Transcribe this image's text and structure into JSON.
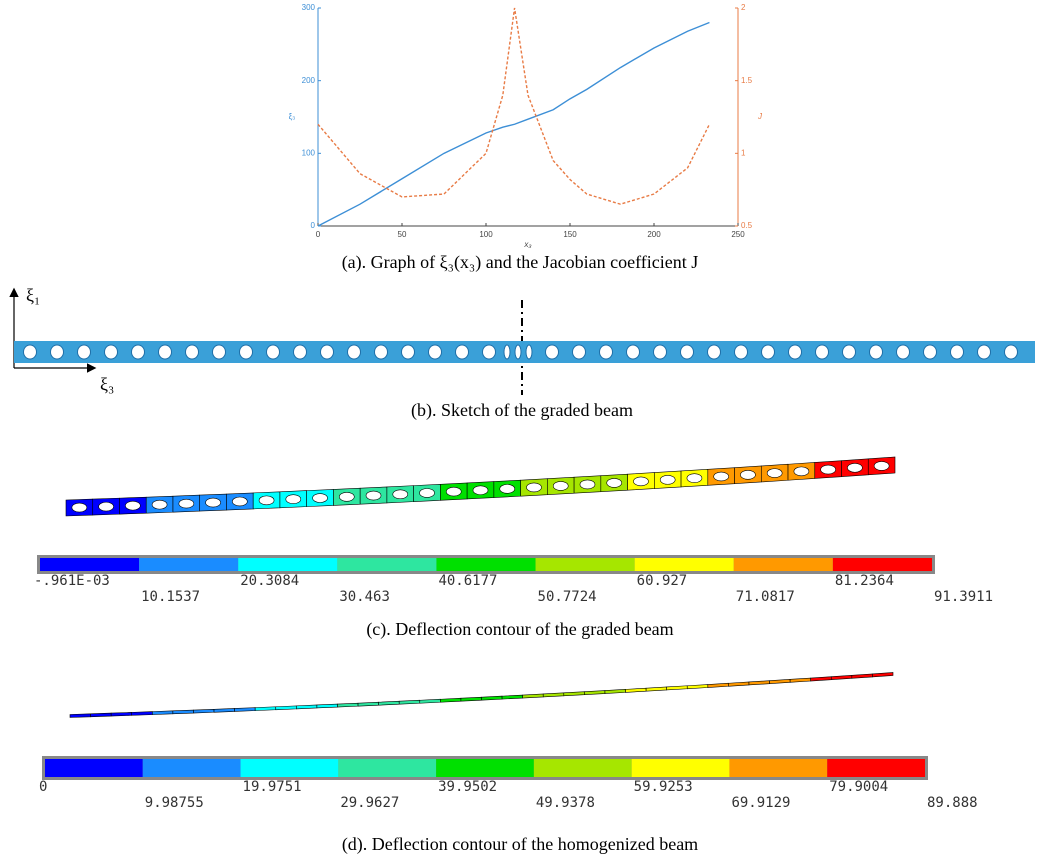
{
  "chart_data": {
    "type": "line",
    "xlabel": "x₃",
    "ylabel": "ξ₃",
    "y2label": "J",
    "x": [
      0,
      25,
      50,
      75,
      100,
      110,
      117,
      125,
      140,
      150,
      160,
      180,
      200,
      220,
      233
    ],
    "series": [
      {
        "name": "ξ₃",
        "color": "#3d8fd6",
        "dash": false,
        "values": [
          0,
          30,
          65,
          100,
          128,
          136,
          140,
          147,
          160,
          175,
          188,
          218,
          245,
          268,
          280
        ]
      },
      {
        "name": "J",
        "color": "#e87b45",
        "dash": true,
        "axis": "y2",
        "values": [
          1.2,
          0.86,
          0.7,
          0.72,
          1.0,
          1.4,
          2.0,
          1.4,
          0.95,
          0.82,
          0.72,
          0.65,
          0.72,
          0.9,
          1.2
        ]
      }
    ],
    "xlim": [
      0,
      250
    ],
    "xticks": [
      0,
      50,
      100,
      150,
      200,
      250
    ],
    "ylim": [
      0,
      300
    ],
    "yticks": [
      0,
      100,
      200,
      300
    ],
    "y2lim": [
      0.5,
      2
    ],
    "y2ticks": [
      0.5,
      1,
      1.5,
      2
    ]
  },
  "captions": [
    "(a). Graph of ξ₃(x₃) and the Jacobian coefficient J",
    "(b). Sketch of the graded beam",
    "(c). Deflection contour of the graded beam",
    "(d). Deflection contour of the homogenized beam"
  ],
  "sketch_axes": [
    "ξ₁",
    "ξ₃"
  ],
  "colorbar_colors": [
    "#0000ff",
    "#1a8cff",
    "#00ffff",
    "#2ee6a0",
    "#00e000",
    "#a6e600",
    "#ffff00",
    "#ff9900",
    "#ff0000"
  ],
  "colorbar_c": [
    "-.961E-03",
    "10.1537",
    "20.3084",
    "30.463",
    "40.6177",
    "50.7724",
    "60.927",
    "71.0817",
    "81.2364",
    "91.3911"
  ],
  "colorbar_d": [
    "0",
    "9.98755",
    "19.9751",
    "29.9627",
    "39.9502",
    "49.9378",
    "59.9253",
    "69.9129",
    "79.9004",
    "89.888"
  ]
}
